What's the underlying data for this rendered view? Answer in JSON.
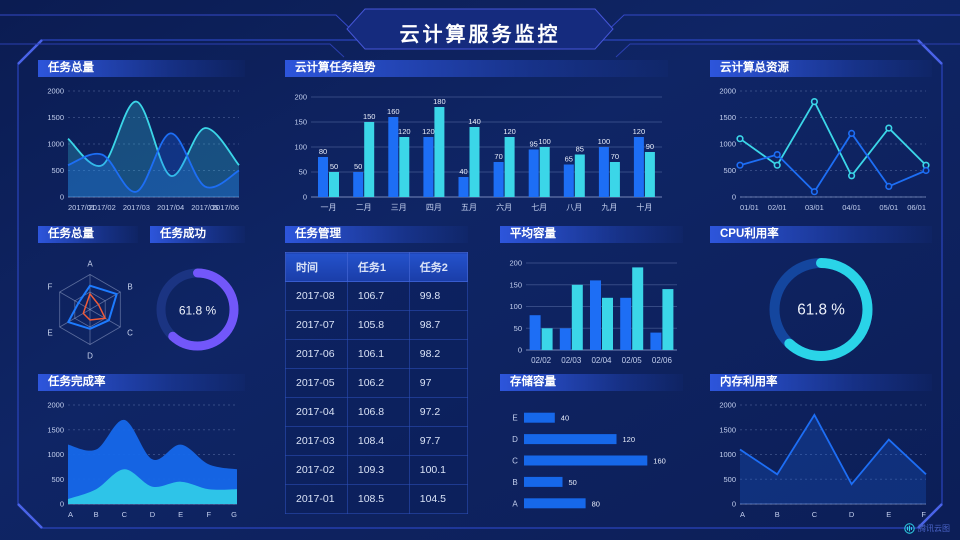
{
  "page": {
    "title": "云计算服务监控",
    "watermark": "腾讯云图"
  },
  "colors": {
    "blue": "#1d6ef5",
    "cyan": "#3bd6e8",
    "purple": "#7257fa",
    "red": "#f05a38",
    "frame": "#2b44bd",
    "background": "#0f2565"
  },
  "chart_data": [
    {
      "type": "area-smooth",
      "title": "任务总量",
      "x": [
        "2017/01",
        "2017/02",
        "2017/03",
        "2017/04",
        "2017/05",
        "2017/06"
      ],
      "ylim": [
        0,
        2000
      ],
      "yticks": [
        0,
        500,
        1000,
        1500,
        2000
      ],
      "series": [
        {
          "name": "cyan-series",
          "color": "#3bd6e8",
          "values": [
            1100,
            600,
            1800,
            400,
            1300,
            600
          ]
        },
        {
          "name": "blue-series",
          "color": "#1d6ef5",
          "values": [
            600,
            800,
            100,
            1200,
            200,
            500
          ]
        }
      ]
    },
    {
      "type": "bar",
      "title": "云计算任务趋势",
      "categories": [
        "一月",
        "二月",
        "三月",
        "四月",
        "五月",
        "六月",
        "七月",
        "八月",
        "九月",
        "十月"
      ],
      "ylim": [
        0,
        200
      ],
      "yticks": [
        0,
        50,
        100,
        150,
        200
      ],
      "barWidth": 10,
      "labels": true,
      "series": [
        {
          "name": "任务1",
          "color": "#1d6ef5",
          "values": [
            80,
            50,
            160,
            120,
            40,
            70,
            95,
            65,
            100,
            120
          ]
        },
        {
          "name": "任务2",
          "color": "#3bd6e8",
          "values": [
            50,
            150,
            120,
            180,
            140,
            120,
            100,
            85,
            70,
            90
          ]
        }
      ]
    },
    {
      "type": "line",
      "title": "云计算总资源",
      "x": [
        "01/01",
        "02/01",
        "03/01",
        "04/01",
        "05/01",
        "06/01"
      ],
      "ylim": [
        0,
        2000
      ],
      "yticks": [
        0,
        500,
        1000,
        1500,
        2000
      ],
      "series": [
        {
          "name": "cyan-series",
          "color": "#3bd6e8",
          "values": [
            1100,
            600,
            1800,
            400,
            1300,
            600
          ]
        },
        {
          "name": "blue-series",
          "color": "#1d6ef5",
          "values": [
            600,
            800,
            100,
            1200,
            200,
            500
          ]
        }
      ]
    },
    {
      "type": "radar",
      "title": "任务总量",
      "axes": [
        "A",
        "B",
        "C",
        "D",
        "E",
        "F"
      ],
      "max": 100,
      "series": [
        {
          "name": "blue-polygon",
          "color": "#1d7bff",
          "values": [
            68,
            88,
            62,
            55,
            72,
            38
          ]
        },
        {
          "name": "red-polygon",
          "color": "#f05a38",
          "values": [
            45,
            28,
            50,
            30,
            22,
            15
          ]
        }
      ]
    },
    {
      "type": "donut",
      "title": "任务成功",
      "value": 61.8,
      "label": "61.8 %",
      "color": "#7257fa",
      "track": "#1b3482",
      "strokeWidth": 9
    },
    {
      "type": "table",
      "title": "任务管理",
      "headers": [
        "时间",
        "任务1",
        "任务2"
      ],
      "rows": [
        [
          "2017-08",
          "106.7",
          "99.8"
        ],
        [
          "2017-07",
          "105.8",
          "98.7"
        ],
        [
          "2017-06",
          "106.1",
          "98.2"
        ],
        [
          "2017-05",
          "106.2",
          "97"
        ],
        [
          "2017-04",
          "106.8",
          "97.2"
        ],
        [
          "2017-03",
          "108.4",
          "97.7"
        ],
        [
          "2017-02",
          "109.3",
          "100.1"
        ],
        [
          "2017-01",
          "108.5",
          "104.5"
        ]
      ]
    },
    {
      "type": "bar",
      "title": "平均容量",
      "categories": [
        "02/02",
        "02/03",
        "02/04",
        "02/05",
        "02/06"
      ],
      "ylim": [
        0,
        200
      ],
      "yticks": [
        0,
        50,
        100,
        150,
        200
      ],
      "barWidth": 11,
      "labels": false,
      "series": [
        {
          "name": "blue-series",
          "color": "#1d6ef5",
          "values": [
            80,
            50,
            160,
            120,
            40
          ]
        },
        {
          "name": "cyan-series",
          "color": "#3bd6e8",
          "values": [
            50,
            150,
            120,
            190,
            140
          ]
        }
      ]
    },
    {
      "type": "donut",
      "title": "CPU利用率",
      "value": 61.8,
      "label": "61.8 %",
      "color": "#2ad4e8",
      "track": "#14469e",
      "strokeWidth": 10
    },
    {
      "type": "area-stack",
      "title": "任务完成率",
      "x": [
        "A",
        "B",
        "C",
        "D",
        "E",
        "F",
        "G"
      ],
      "ylim": [
        0,
        2000
      ],
      "yticks": [
        0,
        500,
        1000,
        1500,
        2000
      ],
      "series": [
        {
          "name": "blue-area",
          "color": "#1668ea",
          "values": [
            1200,
            1100,
            1700,
            900,
            1200,
            800,
            700
          ]
        },
        {
          "name": "cyan-area",
          "color": "#2fc9e8",
          "values": [
            100,
            300,
            700,
            350,
            450,
            300,
            300
          ]
        }
      ]
    },
    {
      "type": "hbar",
      "title": "存储容量",
      "categories": [
        "E",
        "D",
        "C",
        "B",
        "A"
      ],
      "values": [
        40,
        120,
        160,
        50,
        80
      ],
      "xmax": 170,
      "color": "#1668ea"
    },
    {
      "type": "line-area",
      "title": "内存利用率",
      "x": [
        "A",
        "B",
        "C",
        "D",
        "E",
        "F"
      ],
      "ylim": [
        0,
        2000
      ],
      "yticks": [
        0,
        500,
        1000,
        1500,
        2000
      ],
      "series": [
        {
          "name": "blue-series",
          "color": "#1d6ef5",
          "values": [
            1100,
            600,
            1800,
            400,
            1300,
            600
          ]
        }
      ]
    }
  ]
}
